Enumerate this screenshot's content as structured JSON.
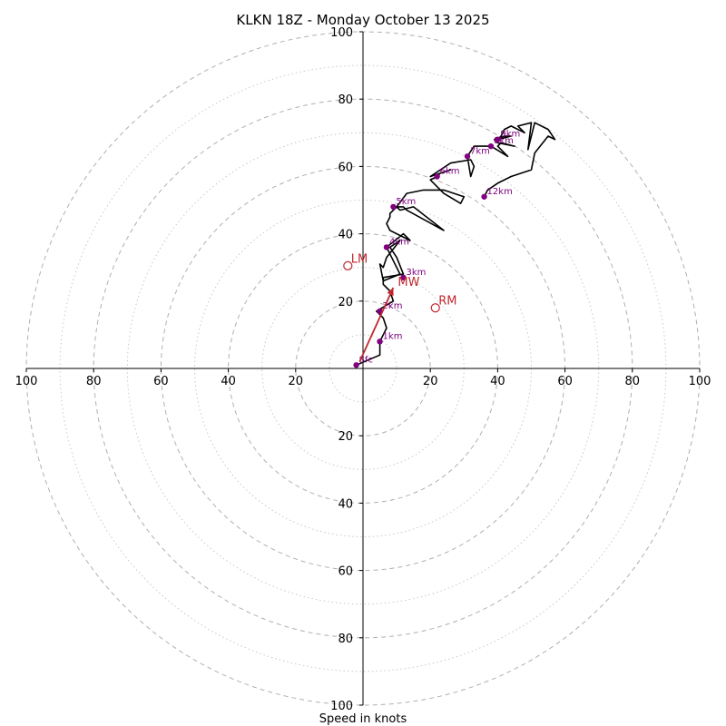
{
  "chart_data": {
    "type": "hodograph",
    "title": "KLKN 18Z - Monday October 13 2025",
    "xlabel": "Speed in knots",
    "units": "knots",
    "range": [
      -100,
      100
    ],
    "ring_major": [
      20,
      40,
      60,
      80,
      100
    ],
    "ring_minor": [
      10,
      30,
      50,
      70,
      90
    ],
    "x_ticks": [
      "100",
      "80",
      "60",
      "40",
      "20",
      "20",
      "40",
      "60",
      "80",
      "100"
    ],
    "y_ticks": [
      "100",
      "80",
      "60",
      "40",
      "20",
      "20",
      "40",
      "60",
      "80",
      "100"
    ],
    "profile": [
      [
        -2,
        1
      ],
      [
        5,
        4
      ],
      [
        5,
        8
      ],
      [
        7,
        12
      ],
      [
        6,
        15
      ],
      [
        5,
        16
      ],
      [
        4,
        17
      ],
      [
        9,
        20
      ],
      [
        8,
        23
      ],
      [
        7,
        24
      ],
      [
        6,
        25
      ],
      [
        6,
        27
      ],
      [
        12,
        28
      ],
      [
        10,
        33
      ],
      [
        8,
        36
      ],
      [
        11,
        38
      ],
      [
        7,
        33
      ],
      [
        6,
        30
      ],
      [
        5,
        31
      ],
      [
        6,
        26
      ],
      [
        11,
        28
      ],
      [
        9,
        32
      ],
      [
        7,
        36
      ],
      [
        12,
        40
      ],
      [
        14,
        38
      ],
      [
        8,
        41
      ],
      [
        7,
        43
      ],
      [
        8,
        45
      ],
      [
        8,
        46
      ],
      [
        10,
        48
      ],
      [
        11,
        47
      ],
      [
        15,
        48
      ],
      [
        24,
        41
      ],
      [
        13,
        47
      ],
      [
        12,
        48
      ],
      [
        10,
        48
      ],
      [
        13,
        52
      ],
      [
        18,
        53
      ],
      [
        24,
        53
      ],
      [
        30,
        51
      ],
      [
        29,
        49
      ],
      [
        24,
        52
      ],
      [
        20,
        56
      ],
      [
        22,
        57
      ],
      [
        23,
        58
      ],
      [
        26,
        59
      ],
      [
        20,
        57
      ],
      [
        26,
        61
      ],
      [
        32,
        62
      ],
      [
        33,
        60
      ],
      [
        32,
        57
      ],
      [
        31,
        63
      ],
      [
        33,
        66
      ],
      [
        36,
        66
      ],
      [
        38,
        66
      ],
      [
        43,
        63
      ],
      [
        40,
        66
      ],
      [
        41,
        67
      ],
      [
        45,
        66
      ],
      [
        40,
        67
      ],
      [
        39,
        68
      ],
      [
        42,
        69
      ],
      [
        44,
        69
      ],
      [
        40,
        68
      ],
      [
        41,
        69
      ],
      [
        42,
        71
      ],
      [
        44,
        72
      ],
      [
        48,
        70
      ],
      [
        46,
        72
      ],
      [
        50,
        73
      ],
      [
        49,
        65
      ],
      [
        51,
        73
      ],
      [
        55,
        71
      ],
      [
        57,
        68
      ],
      [
        55,
        69
      ],
      [
        51,
        64
      ],
      [
        50,
        59
      ],
      [
        44,
        57
      ],
      [
        40,
        55
      ],
      [
        37,
        53
      ],
      [
        36,
        51
      ]
    ],
    "height_markers": [
      {
        "label": "Sfc",
        "u": -2,
        "v": 1
      },
      {
        "label": "1km",
        "u": 5,
        "v": 8
      },
      {
        "label": "2km",
        "u": 5,
        "v": 17
      },
      {
        "label": "3km",
        "u": 12,
        "v": 27
      },
      {
        "label": "4km",
        "u": 7,
        "v": 36
      },
      {
        "label": "5km",
        "u": 9,
        "v": 48
      },
      {
        "label": "6km",
        "u": 22,
        "v": 57
      },
      {
        "label": "7km",
        "u": 31,
        "v": 63
      },
      {
        "label": "8km",
        "u": 38,
        "v": 66
      },
      {
        "label": "9km",
        "u": 40,
        "v": 68
      },
      {
        "label": "12km",
        "u": 36,
        "v": 51
      }
    ],
    "motion_points": [
      {
        "label": "RM",
        "u": 21.5,
        "v": 18
      },
      {
        "label": "LM",
        "u": -4.5,
        "v": 30.5
      }
    ],
    "mean_wind": {
      "label": "MW",
      "start": [
        -1,
        2
      ],
      "end": [
        9,
        24
      ]
    },
    "colors": {
      "profile": "#000000",
      "markers": "#800080",
      "motion": "#c1272d",
      "grid": "#b0b0b0",
      "axis": "#000000"
    }
  }
}
